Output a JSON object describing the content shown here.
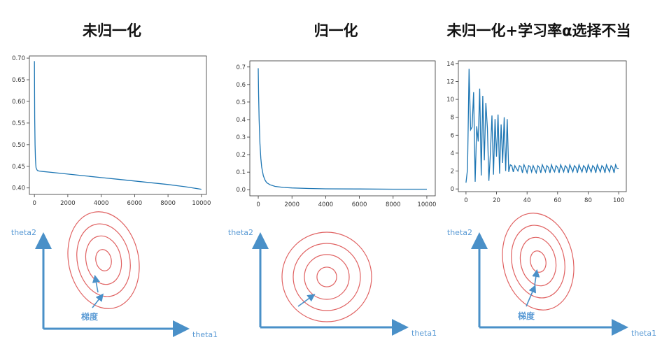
{
  "titles": [
    "未归一化",
    "归一化",
    "未归一化+学习率α选择不当"
  ],
  "chart_data": [
    {
      "type": "line",
      "title": "未归一化",
      "xlim": [
        -300,
        10300
      ],
      "ylim": [
        0.385,
        0.705
      ],
      "xticks": [
        0,
        2000,
        4000,
        6000,
        8000,
        10000
      ],
      "yticks": [
        0.4,
        0.45,
        0.5,
        0.55,
        0.6,
        0.65,
        0.7
      ],
      "ytick_labels": [
        "0.40",
        "0.45",
        "0.50",
        "0.55",
        "0.60",
        "0.65",
        "0.70"
      ],
      "series": [
        {
          "x": [
            0,
            10,
            20,
            40,
            60,
            80,
            100,
            150,
            200,
            300,
            500,
            1000,
            2000,
            3000,
            4000,
            5000,
            6000,
            7000,
            8000,
            9000,
            10000
          ],
          "y": [
            0.693,
            0.62,
            0.56,
            0.5,
            0.47,
            0.455,
            0.447,
            0.442,
            0.44,
            0.439,
            0.438,
            0.436,
            0.432,
            0.428,
            0.424,
            0.42,
            0.416,
            0.412,
            0.408,
            0.403,
            0.397
          ]
        }
      ],
      "color": "#1f77b4"
    },
    {
      "type": "line",
      "title": "归一化",
      "xlim": [
        -500,
        10500
      ],
      "ylim": [
        -0.035,
        0.735
      ],
      "xticks": [
        0,
        2000,
        4000,
        6000,
        8000,
        10000
      ],
      "yticks": [
        0.0,
        0.1,
        0.2,
        0.3,
        0.4,
        0.5,
        0.6,
        0.7
      ],
      "ytick_labels": [
        "0.0",
        "0.1",
        "0.2",
        "0.3",
        "0.4",
        "0.5",
        "0.6",
        "0.7"
      ],
      "series": [
        {
          "x": [
            0,
            20,
            50,
            100,
            150,
            200,
            300,
            400,
            500,
            700,
            1000,
            1500,
            2000,
            3000,
            4000,
            6000,
            8000,
            10000
          ],
          "y": [
            0.693,
            0.55,
            0.4,
            0.26,
            0.18,
            0.13,
            0.08,
            0.055,
            0.04,
            0.028,
            0.019,
            0.013,
            0.01,
            0.007,
            0.005,
            0.004,
            0.003,
            0.003
          ]
        }
      ],
      "color": "#1f77b4"
    },
    {
      "type": "line",
      "title": "未归一化+学习率α选择不当",
      "xlim": [
        -5,
        105
      ],
      "ylim": [
        -0.3,
        14.3
      ],
      "xticks": [
        0,
        20,
        40,
        60,
        80,
        100
      ],
      "yticks": [
        0,
        2,
        4,
        6,
        8,
        10,
        12,
        14
      ],
      "ytick_labels": [
        "0",
        "2",
        "4",
        "6",
        "8",
        "10",
        "12",
        "14"
      ],
      "series": [
        {
          "x": [
            0,
            1,
            2,
            3,
            4,
            5,
            6,
            7,
            8,
            9,
            10,
            11,
            12,
            13,
            14,
            15,
            16,
            17,
            18,
            19,
            20,
            21,
            22,
            23,
            24,
            25,
            26,
            27,
            28,
            29,
            30,
            31,
            32,
            33,
            34,
            35,
            36,
            37,
            38,
            39,
            40,
            41,
            42,
            43,
            44,
            45,
            46,
            47,
            48,
            49,
            50,
            51,
            52,
            53,
            54,
            55,
            56,
            57,
            58,
            59,
            60,
            61,
            62,
            63,
            64,
            65,
            66,
            67,
            68,
            69,
            70,
            71,
            72,
            73,
            74,
            75,
            76,
            77,
            78,
            79,
            80,
            81,
            82,
            83,
            84,
            85,
            86,
            87,
            88,
            89,
            90,
            91,
            92,
            93,
            94,
            95,
            96,
            97,
            98,
            99,
            100
          ],
          "y": [
            0.7,
            2.2,
            13.4,
            6.6,
            6.9,
            10.8,
            0.8,
            7.0,
            5.3,
            11.2,
            1.5,
            10.4,
            3.2,
            9.6,
            6.8,
            0.9,
            4.0,
            8.2,
            1.6,
            7.8,
            3.6,
            8.3,
            1.7,
            7.2,
            2.9,
            8.0,
            2.0,
            7.8,
            1.9,
            2.7,
            2.6,
            1.9,
            2.6,
            2.3,
            2.0,
            2.6,
            2.5,
            1.8,
            2.7,
            2.3,
            1.8,
            2.6,
            2.5,
            1.9,
            2.6,
            2.2,
            1.8,
            2.6,
            2.4,
            1.8,
            2.7,
            2.3,
            1.9,
            2.6,
            2.4,
            1.8,
            2.7,
            2.2,
            1.9,
            2.6,
            2.4,
            1.8,
            2.7,
            2.3,
            1.9,
            2.6,
            2.4,
            1.8,
            2.7,
            2.3,
            1.9,
            2.6,
            2.4,
            1.8,
            2.7,
            2.3,
            1.9,
            2.6,
            2.4,
            1.8,
            2.7,
            2.3,
            1.9,
            2.6,
            2.4,
            1.8,
            2.7,
            2.3,
            1.9,
            2.6,
            2.4,
            1.8,
            2.7,
            2.3,
            1.9,
            2.6,
            2.4,
            1.8,
            2.7,
            2.3,
            2.3
          ]
        }
      ],
      "color": "#1f77b4"
    }
  ],
  "diagrams": [
    {
      "ylabel": "theta2",
      "xlabel": "theta1",
      "gradient_label": "梯度",
      "shape": "ellipse"
    },
    {
      "ylabel": "theta2",
      "xlabel": "theta1",
      "gradient_label": "",
      "shape": "circle"
    },
    {
      "ylabel": "theta2",
      "xlabel": "theta1",
      "gradient_label": "梯度",
      "shape": "ellipse"
    }
  ],
  "colors": {
    "line": "#1f77b4",
    "axis_arrow": "#4a90c8",
    "contour": "#e06262",
    "label": "#5b9bd5",
    "frame": "#333333",
    "tick_text": "#333333"
  }
}
